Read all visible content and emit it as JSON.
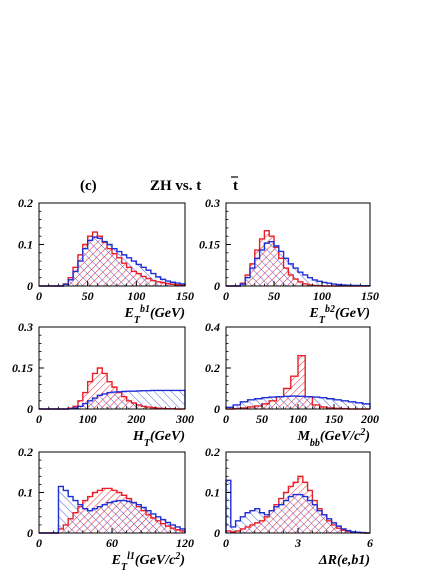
{
  "figure": {
    "label": "(c)",
    "title": "ZH  vs.  t",
    "title_bar_letter": "t",
    "colors": {
      "signal": "#e8202a",
      "background": "#1f2fd6",
      "axis": "#000000"
    }
  },
  "chart_data": [
    {
      "type": "histogram",
      "xlabel": "E_T^b1(GeV)",
      "xlim": [
        0,
        150
      ],
      "ylim": [
        0,
        0.2
      ],
      "xticks": [
        "0",
        "50",
        "100",
        "150"
      ],
      "xtick_values": [
        0,
        50,
        100,
        150
      ],
      "yticks": [
        "0",
        "0.1",
        "0.2"
      ],
      "ytick_values": [
        0,
        0.1,
        0.2
      ],
      "bin_edges": [
        0,
        5,
        10,
        15,
        20,
        25,
        30,
        35,
        40,
        45,
        50,
        55,
        60,
        65,
        70,
        75,
        80,
        85,
        90,
        95,
        100,
        105,
        110,
        115,
        120,
        125,
        130,
        135,
        140,
        145,
        150
      ],
      "series": [
        {
          "name": "ZH",
          "style": "hatched",
          "values": [
            0,
            0,
            0,
            0,
            0,
            0.005,
            0.02,
            0.045,
            0.075,
            0.1,
            0.12,
            0.13,
            0.12,
            0.105,
            0.09,
            0.078,
            0.068,
            0.055,
            0.045,
            0.035,
            0.03,
            0.023,
            0.018,
            0.013,
            0.01,
            0.008,
            0.006,
            0.004,
            0.003,
            0.002
          ]
        },
        {
          "name": "tt",
          "style": "outline",
          "values": [
            0,
            0,
            0,
            0,
            0,
            0.004,
            0.015,
            0.035,
            0.06,
            0.09,
            0.11,
            0.118,
            0.115,
            0.107,
            0.1,
            0.09,
            0.083,
            0.075,
            0.068,
            0.06,
            0.052,
            0.045,
            0.038,
            0.03,
            0.022,
            0.016,
            0.012,
            0.009,
            0.007,
            0.005
          ]
        }
      ]
    },
    {
      "type": "histogram",
      "xlabel": "E_T^b2(GeV)",
      "xlim": [
        0,
        150
      ],
      "ylim": [
        0,
        0.3
      ],
      "xticks": [
        "0",
        "50",
        "100",
        "150"
      ],
      "xtick_values": [
        0,
        50,
        100,
        150
      ],
      "yticks": [
        "0",
        "0.15",
        "0.3"
      ],
      "ytick_values": [
        0,
        0.15,
        0.3
      ],
      "bin_edges": [
        0,
        5,
        10,
        15,
        20,
        25,
        30,
        35,
        40,
        45,
        50,
        55,
        60,
        65,
        70,
        75,
        80,
        85,
        90,
        95,
        100,
        105,
        110,
        115,
        120,
        125,
        130,
        135,
        140,
        145,
        150
      ],
      "series": [
        {
          "name": "ZH",
          "style": "hatched",
          "values": [
            0,
            0,
            0,
            0.01,
            0.04,
            0.08,
            0.13,
            0.17,
            0.2,
            0.18,
            0.14,
            0.1,
            0.065,
            0.04,
            0.025,
            0.015,
            0.008,
            0.004,
            0.002,
            0.001,
            0,
            0,
            0,
            0,
            0,
            0,
            0,
            0,
            0,
            0
          ]
        },
        {
          "name": "tt",
          "style": "outline",
          "values": [
            0,
            0,
            0,
            0.007,
            0.03,
            0.065,
            0.1,
            0.13,
            0.155,
            0.16,
            0.145,
            0.125,
            0.1,
            0.08,
            0.065,
            0.05,
            0.04,
            0.03,
            0.022,
            0.017,
            0.013,
            0.01,
            0.007,
            0.005,
            0.004,
            0.003,
            0.002,
            0.002,
            0.001,
            0.001
          ]
        }
      ]
    },
    {
      "type": "histogram",
      "xlabel": "H_T(GeV)",
      "xlim": [
        0,
        300
      ],
      "ylim": [
        0,
        0.3
      ],
      "xticks": [
        "0",
        "100",
        "200",
        "300"
      ],
      "xtick_values": [
        0,
        100,
        200,
        300
      ],
      "yticks": [
        "0",
        "0.15",
        "0.3"
      ],
      "ytick_values": [
        0,
        0.15,
        0.3
      ],
      "bin_edges": [
        0,
        10,
        20,
        30,
        40,
        50,
        60,
        70,
        80,
        90,
        100,
        110,
        120,
        130,
        140,
        150,
        160,
        170,
        180,
        190,
        200,
        210,
        220,
        230,
        240,
        250,
        260,
        270,
        280,
        290,
        300
      ],
      "series": [
        {
          "name": "ZH",
          "style": "hatched",
          "values": [
            0,
            0,
            0,
            0,
            0,
            0,
            0.003,
            0.01,
            0.03,
            0.06,
            0.1,
            0.13,
            0.15,
            0.13,
            0.1,
            0.08,
            0.06,
            0.045,
            0.03,
            0.022,
            0.015,
            0.01,
            0.007,
            0.005,
            0.003,
            0.002,
            0.001,
            0.001,
            0,
            0
          ]
        },
        {
          "name": "tt",
          "style": "outline",
          "values": [
            0,
            0,
            0,
            0,
            0,
            0,
            0.001,
            0.004,
            0.01,
            0.02,
            0.03,
            0.04,
            0.05,
            0.055,
            0.06,
            0.062,
            0.063,
            0.064,
            0.065,
            0.065,
            0.066,
            0.067,
            0.067,
            0.068,
            0.068,
            0.068,
            0.068,
            0.068,
            0.068,
            0.068
          ]
        }
      ]
    },
    {
      "type": "histogram",
      "xlabel": "M_bb(GeV/c^2)",
      "xlim": [
        0,
        200
      ],
      "ylim": [
        0,
        0.4
      ],
      "xticks": [
        "0",
        "50",
        "100",
        "150",
        "200"
      ],
      "xtick_values": [
        0,
        50,
        100,
        150,
        200
      ],
      "yticks": [
        "0",
        "0.2",
        "0.4"
      ],
      "ytick_values": [
        0,
        0.2,
        0.4
      ],
      "bin_edges": [
        0,
        10,
        20,
        30,
        40,
        50,
        60,
        70,
        80,
        90,
        100,
        110,
        120,
        130,
        140,
        150,
        160,
        170,
        180,
        190,
        200
      ],
      "series": [
        {
          "name": "ZH",
          "style": "hatched",
          "values": [
            0,
            0.002,
            0.005,
            0.01,
            0.015,
            0.025,
            0.04,
            0.06,
            0.1,
            0.16,
            0.26,
            0.06,
            0.02,
            0.01,
            0.005,
            0.003,
            0.002,
            0,
            0,
            0
          ]
        },
        {
          "name": "tt",
          "style": "outline",
          "values": [
            0.008,
            0.02,
            0.035,
            0.045,
            0.05,
            0.055,
            0.058,
            0.06,
            0.062,
            0.063,
            0.062,
            0.06,
            0.058,
            0.055,
            0.05,
            0.045,
            0.04,
            0.035,
            0.03,
            0.025
          ]
        }
      ]
    },
    {
      "type": "histogram",
      "xlabel": "E_T^l1(GeV/c^2)",
      "xlim": [
        0,
        120
      ],
      "ylim": [
        0,
        0.2
      ],
      "xticks": [
        "0",
        "60",
        "120"
      ],
      "xtick_values": [
        0,
        60,
        120
      ],
      "yticks": [
        "0",
        "0.1",
        "0.2"
      ],
      "ytick_values": [
        0,
        0.1,
        0.2
      ],
      "bin_edges": [
        0,
        4,
        8,
        12,
        16,
        20,
        24,
        28,
        32,
        36,
        40,
        44,
        48,
        52,
        56,
        60,
        64,
        68,
        72,
        76,
        80,
        84,
        88,
        92,
        96,
        100,
        104,
        108,
        112,
        116,
        120
      ],
      "series": [
        {
          "name": "ZH",
          "style": "hatched",
          "values": [
            0,
            0,
            0,
            0,
            0.01,
            0.02,
            0.035,
            0.05,
            0.065,
            0.08,
            0.09,
            0.1,
            0.105,
            0.11,
            0.11,
            0.105,
            0.1,
            0.093,
            0.085,
            0.075,
            0.065,
            0.055,
            0.045,
            0.037,
            0.03,
            0.023,
            0.017,
            0.012,
            0.008,
            0.005
          ]
        },
        {
          "name": "tt",
          "style": "outline",
          "values": [
            0,
            0,
            0,
            0,
            0.115,
            0.105,
            0.09,
            0.08,
            0.07,
            0.06,
            0.055,
            0.06,
            0.065,
            0.07,
            0.075,
            0.078,
            0.08,
            0.08,
            0.078,
            0.075,
            0.07,
            0.063,
            0.055,
            0.047,
            0.04,
            0.033,
            0.026,
            0.02,
            0.015,
            0.01
          ]
        }
      ]
    },
    {
      "type": "histogram",
      "xlabel": "ΔR(e,b1)",
      "xlim": [
        0,
        6
      ],
      "ylim": [
        0,
        0.2
      ],
      "xticks": [
        "0",
        "3",
        "6"
      ],
      "xtick_values": [
        0,
        3,
        6
      ],
      "yticks": [
        "0",
        "0.1",
        "0.2"
      ],
      "ytick_values": [
        0,
        0.1,
        0.2
      ],
      "bin_edges": [
        0,
        0.2,
        0.4,
        0.6,
        0.8,
        1,
        1.2,
        1.4,
        1.6,
        1.8,
        2,
        2.2,
        2.4,
        2.6,
        2.8,
        3,
        3.2,
        3.4,
        3.6,
        3.8,
        4,
        4.2,
        4.4,
        4.6,
        4.8,
        5,
        5.2,
        5.4,
        5.6,
        5.8,
        6
      ],
      "series": [
        {
          "name": "ZH",
          "style": "hatched",
          "values": [
            0.005,
            0.003,
            0.005,
            0.01,
            0.015,
            0.02,
            0.025,
            0.03,
            0.04,
            0.055,
            0.07,
            0.085,
            0.1,
            0.115,
            0.125,
            0.14,
            0.125,
            0.105,
            0.08,
            0.06,
            0.045,
            0.03,
            0.02,
            0.012,
            0.007,
            0.004,
            0.002,
            0.001,
            0,
            0
          ]
        },
        {
          "name": "tt",
          "style": "outline",
          "values": [
            0.13,
            0.015,
            0.03,
            0.04,
            0.05,
            0.055,
            0.06,
            0.05,
            0.045,
            0.055,
            0.065,
            0.07,
            0.08,
            0.09,
            0.095,
            0.095,
            0.09,
            0.08,
            0.07,
            0.055,
            0.045,
            0.035,
            0.025,
            0.017,
            0.01,
            0.006,
            0.003,
            0.002,
            0.001,
            0
          ]
        }
      ]
    }
  ]
}
